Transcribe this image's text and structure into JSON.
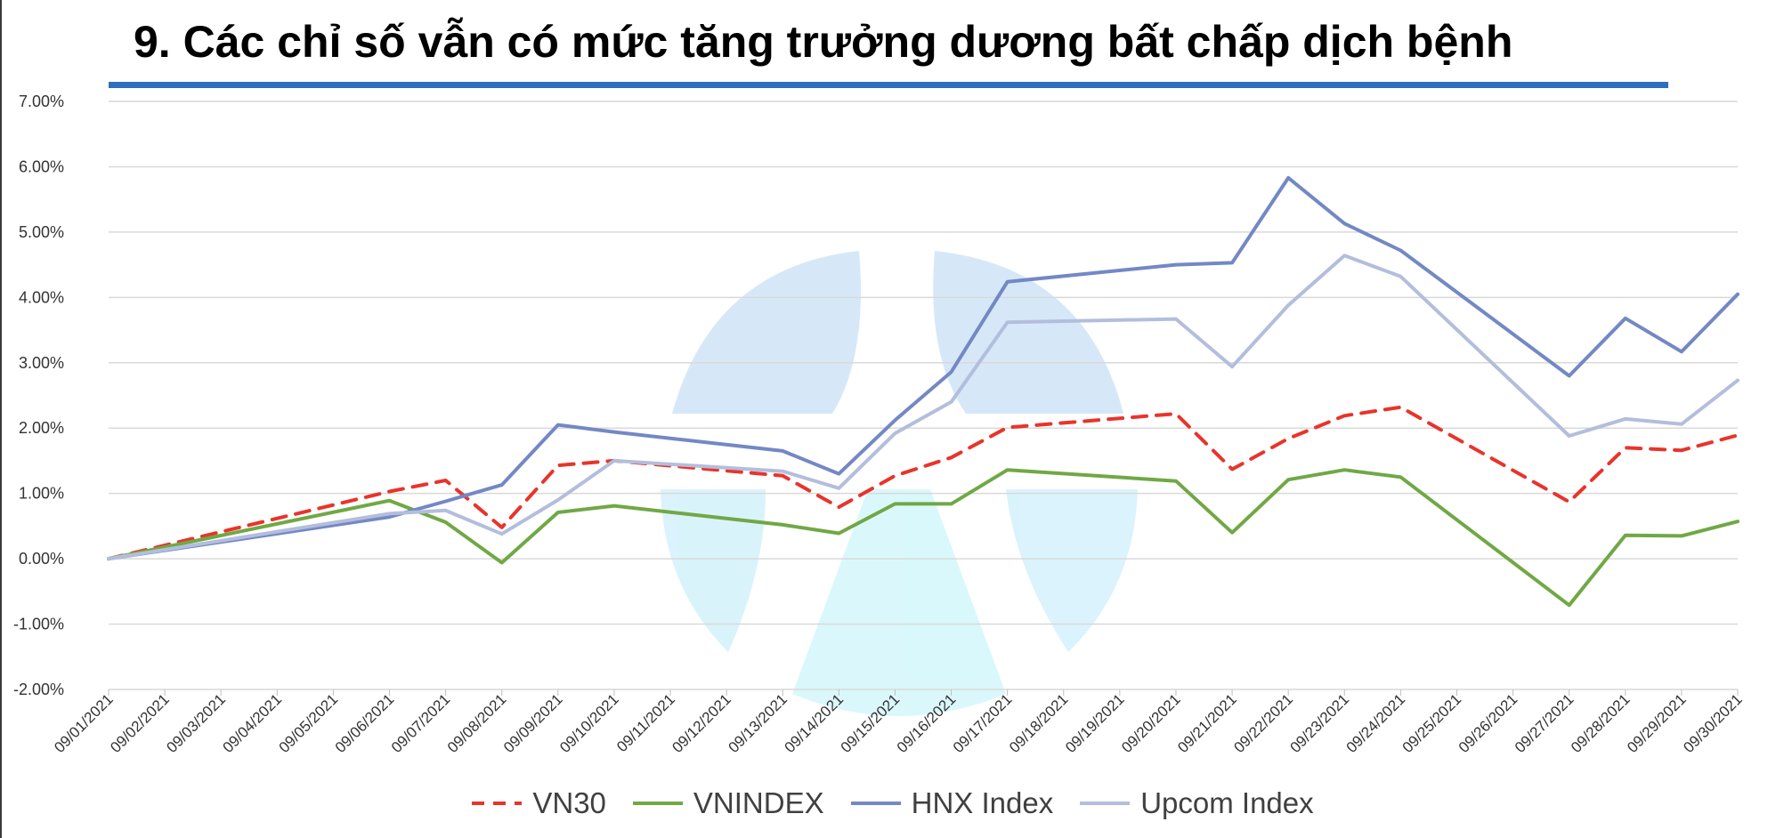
{
  "title": "9. Các chỉ số vẫn có mức tăng trưởng dương bất chấp dịch bệnh",
  "chart_data": {
    "type": "line",
    "title": "",
    "xlabel": "",
    "ylabel": "",
    "ylim": [
      -0.02,
      0.07
    ],
    "y_ticks": [
      -0.02,
      -0.01,
      0,
      0.01,
      0.02,
      0.03,
      0.04,
      0.05,
      0.06,
      0.07
    ],
    "y_tick_labels": [
      "-2.00%",
      "-1.00%",
      "0.00%",
      "1.00%",
      "2.00%",
      "3.00%",
      "4.00%",
      "5.00%",
      "6.00%",
      "7.00%"
    ],
    "grid": true,
    "legend_position": "bottom",
    "categories": [
      "09/01/2021",
      "09/02/2021",
      "09/03/2021",
      "09/04/2021",
      "09/05/2021",
      "09/06/2021",
      "09/07/2021",
      "09/08/2021",
      "09/09/2021",
      "09/10/2021",
      "09/11/2021",
      "09/12/2021",
      "09/13/2021",
      "09/14/2021",
      "09/15/2021",
      "09/16/2021",
      "09/17/2021",
      "09/18/2021",
      "09/19/2021",
      "09/20/2021",
      "09/21/2021",
      "09/22/2021",
      "09/23/2021",
      "09/24/2021",
      "09/25/2021",
      "09/26/2021",
      "09/27/2021",
      "09/28/2021",
      "09/29/2021",
      "09/30/2021"
    ],
    "series": [
      {
        "name": "VN30",
        "color": "#e8342b",
        "dash": true,
        "points": [
          [
            "09/01/2021",
            0.0
          ],
          [
            "09/06/2021",
            0.0103
          ],
          [
            "09/07/2021",
            0.012
          ],
          [
            "09/08/2021",
            0.0048
          ],
          [
            "09/09/2021",
            0.0143
          ],
          [
            "09/10/2021",
            0.015
          ],
          [
            "09/13/2021",
            0.0127
          ],
          [
            "09/14/2021",
            0.0079
          ],
          [
            "09/15/2021",
            0.0127
          ],
          [
            "09/16/2021",
            0.0155
          ],
          [
            "09/17/2021",
            0.0201
          ],
          [
            "09/20/2021",
            0.0222
          ],
          [
            "09/21/2021",
            0.0137
          ],
          [
            "09/22/2021",
            0.0184
          ],
          [
            "09/23/2021",
            0.0219
          ],
          [
            "09/24/2021",
            0.0232
          ],
          [
            "09/27/2021",
            0.0087
          ],
          [
            "09/28/2021",
            0.017
          ],
          [
            "09/29/2021",
            0.0166
          ],
          [
            "09/30/2021",
            0.0189
          ]
        ]
      },
      {
        "name": "VNINDEX",
        "color": "#70a845",
        "dash": false,
        "points": [
          [
            "09/01/2021",
            0.0
          ],
          [
            "09/06/2021",
            0.0089
          ],
          [
            "09/07/2021",
            0.0056
          ],
          [
            "09/08/2021",
            -0.0006
          ],
          [
            "09/09/2021",
            0.0071
          ],
          [
            "09/10/2021",
            0.0081
          ],
          [
            "09/13/2021",
            0.0052
          ],
          [
            "09/14/2021",
            0.0039
          ],
          [
            "09/15/2021",
            0.0084
          ],
          [
            "09/16/2021",
            0.0084
          ],
          [
            "09/17/2021",
            0.0136
          ],
          [
            "09/20/2021",
            0.0119
          ],
          [
            "09/21/2021",
            0.004
          ],
          [
            "09/22/2021",
            0.0121
          ],
          [
            "09/23/2021",
            0.0136
          ],
          [
            "09/24/2021",
            0.0125
          ],
          [
            "09/27/2021",
            -0.0071
          ],
          [
            "09/28/2021",
            0.0036
          ],
          [
            "09/29/2021",
            0.0035
          ],
          [
            "09/30/2021",
            0.0057
          ]
        ]
      },
      {
        "name": "HNX Index",
        "color": "#7388c4",
        "dash": false,
        "points": [
          [
            "09/01/2021",
            0.0
          ],
          [
            "09/06/2021",
            0.0064
          ],
          [
            "09/07/2021",
            0.0088
          ],
          [
            "09/08/2021",
            0.0113
          ],
          [
            "09/09/2021",
            0.0205
          ],
          [
            "09/10/2021",
            0.0194
          ],
          [
            "09/13/2021",
            0.0165
          ],
          [
            "09/14/2021",
            0.013
          ],
          [
            "09/15/2021",
            0.0212
          ],
          [
            "09/16/2021",
            0.0286
          ],
          [
            "09/17/2021",
            0.0424
          ],
          [
            "09/20/2021",
            0.045
          ],
          [
            "09/21/2021",
            0.0453
          ],
          [
            "09/22/2021",
            0.0583
          ],
          [
            "09/23/2021",
            0.0513
          ],
          [
            "09/24/2021",
            0.0472
          ],
          [
            "09/27/2021",
            0.028
          ],
          [
            "09/28/2021",
            0.0368
          ],
          [
            "09/29/2021",
            0.0317
          ],
          [
            "09/30/2021",
            0.0405
          ]
        ]
      },
      {
        "name": "Upcom Index",
        "color": "#b3bedd",
        "dash": false,
        "points": [
          [
            "09/01/2021",
            0.0
          ],
          [
            "09/06/2021",
            0.0069
          ],
          [
            "09/07/2021",
            0.0074
          ],
          [
            "09/08/2021",
            0.0038
          ],
          [
            "09/09/2021",
            0.009
          ],
          [
            "09/10/2021",
            0.015
          ],
          [
            "09/13/2021",
            0.0134
          ],
          [
            "09/14/2021",
            0.0108
          ],
          [
            "09/15/2021",
            0.0192
          ],
          [
            "09/16/2021",
            0.024
          ],
          [
            "09/17/2021",
            0.0362
          ],
          [
            "09/20/2021",
            0.0367
          ],
          [
            "09/21/2021",
            0.0294
          ],
          [
            "09/22/2021",
            0.0388
          ],
          [
            "09/23/2021",
            0.0464
          ],
          [
            "09/24/2021",
            0.0432
          ],
          [
            "09/27/2021",
            0.0188
          ],
          [
            "09/28/2021",
            0.0214
          ],
          [
            "09/29/2021",
            0.0206
          ],
          [
            "09/30/2021",
            0.0273
          ]
        ]
      }
    ]
  }
}
